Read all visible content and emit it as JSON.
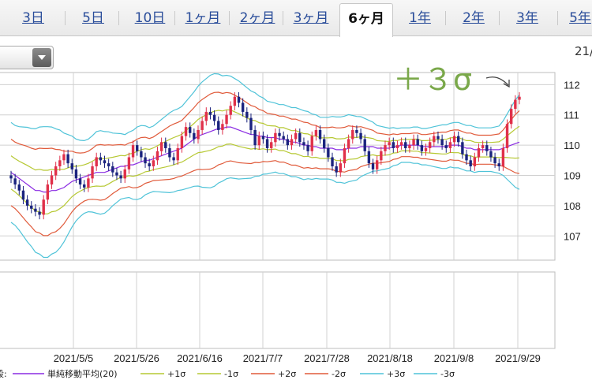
{
  "tabs": [
    {
      "label": "3日",
      "active": false
    },
    {
      "label": "5日",
      "active": false
    },
    {
      "label": "10日",
      "active": false
    },
    {
      "label": "1ヶ月",
      "active": false
    },
    {
      "label": "2ヶ月",
      "active": false
    },
    {
      "label": "3ヶ月",
      "active": false
    },
    {
      "label": "6ヶ月",
      "active": true
    },
    {
      "label": "1年",
      "active": false
    },
    {
      "label": "2年",
      "active": false
    },
    {
      "label": "3年",
      "active": false
    },
    {
      "label": "5年",
      "active": false
    }
  ],
  "dropdown_icon": "chevron-down-icon",
  "corner_label": "21/",
  "annotation": "＋３σ",
  "chart_data": {
    "type": "candlestick",
    "ylim": [
      106.2,
      112.4
    ],
    "yticks": [
      107,
      108,
      109,
      110,
      111,
      112
    ],
    "xtick_labels": [
      "2021/5/5",
      "2021/5/26",
      "2021/6/16",
      "2021/7/7",
      "2021/7/28",
      "2021/8/18",
      "2021/9/8",
      "2021/9/29"
    ],
    "grid": true,
    "legend": {
      "prefix": "段:",
      "items": [
        {
          "label": "単純移動平均(20)",
          "color": "#8a2be2"
        },
        {
          "label": "+1σ",
          "color": "#b6c832"
        },
        {
          "label": "-1σ",
          "color": "#b6c832"
        },
        {
          "label": "+2σ",
          "color": "#e05a3a"
        },
        {
          "label": "-2σ",
          "color": "#e05a3a"
        },
        {
          "label": "+3σ",
          "color": "#4fc3d8"
        },
        {
          "label": "-3σ",
          "color": "#4fc3d8"
        }
      ]
    },
    "up_color": "#e0304a",
    "down_color": "#1a237e",
    "close": [
      108.9,
      108.7,
      108.5,
      108.2,
      108.0,
      107.9,
      107.8,
      107.7,
      108.2,
      108.7,
      109.0,
      109.3,
      109.5,
      109.7,
      109.4,
      109.2,
      108.9,
      108.7,
      108.6,
      108.9,
      109.3,
      109.6,
      109.5,
      109.4,
      109.3,
      109.1,
      109.0,
      108.9,
      109.2,
      109.6,
      110.0,
      109.8,
      109.6,
      109.4,
      109.3,
      109.5,
      109.8,
      110.1,
      109.9,
      109.6,
      109.5,
      109.9,
      110.3,
      110.6,
      110.4,
      110.2,
      110.5,
      110.8,
      111.1,
      111.0,
      110.8,
      110.5,
      110.7,
      111.0,
      111.3,
      111.6,
      111.4,
      111.1,
      110.9,
      110.5,
      110.0,
      110.3,
      110.2,
      109.9,
      110.1,
      110.4,
      110.3,
      110.2,
      110.0,
      110.2,
      110.4,
      110.1,
      110.0,
      109.8,
      110.3,
      110.5,
      110.2,
      109.9,
      109.6,
      109.3,
      109.1,
      109.4,
      109.9,
      110.2,
      110.5,
      110.4,
      110.2,
      109.8,
      109.4,
      109.2,
      109.5,
      109.8,
      110.0,
      110.1,
      109.9,
      110.0,
      110.1,
      109.9,
      110.0,
      110.2,
      110.0,
      109.8,
      109.9,
      110.1,
      110.3,
      110.2,
      110.0,
      109.9,
      110.1,
      110.3,
      110.1,
      109.7,
      109.5,
      109.3,
      109.6,
      109.9,
      110.0,
      109.8,
      109.6,
      109.4,
      109.3,
      109.9,
      110.7,
      111.2,
      111.5,
      111.6
    ],
    "sma20": [
      109.1,
      109.0,
      108.9,
      108.8,
      108.7,
      108.6,
      108.5,
      108.5,
      108.45,
      108.45,
      108.5,
      108.5,
      108.55,
      108.6,
      108.7,
      108.8,
      108.85,
      108.9,
      108.95,
      109.0,
      109.05,
      109.1,
      109.1,
      109.1,
      109.15,
      109.2,
      109.25,
      109.3,
      109.3,
      109.35,
      109.35,
      109.4,
      109.45,
      109.5,
      109.5,
      109.55,
      109.6,
      109.65,
      109.7,
      109.75,
      109.8,
      109.85,
      109.9,
      110.0,
      110.1,
      110.2,
      110.3,
      110.35,
      110.4,
      110.45,
      110.5,
      110.55,
      110.55,
      110.6,
      110.6,
      110.55,
      110.5,
      110.45,
      110.4,
      110.35,
      110.35,
      110.3,
      110.3,
      110.25,
      110.25,
      110.25,
      110.2,
      110.2,
      110.15,
      110.1,
      110.1,
      110.05,
      110.0,
      110.0,
      109.95,
      109.95,
      109.9,
      109.9,
      109.9,
      109.9,
      109.85,
      109.85,
      109.85,
      109.9,
      109.9,
      109.9,
      109.95,
      109.95,
      109.95,
      109.95,
      109.9,
      109.9,
      109.9,
      109.9,
      109.95,
      109.95,
      110.0,
      110.0,
      110.0,
      110.0,
      110.0,
      109.95,
      109.95,
      109.95,
      109.95,
      109.95,
      109.95,
      109.95,
      110.0,
      110.0,
      110.0,
      109.95,
      109.9,
      109.9,
      109.85,
      109.85,
      109.85,
      109.85,
      109.85,
      109.85,
      109.85,
      109.9,
      109.95,
      110.0,
      110.05,
      110.1
    ],
    "sigma": [
      0.55,
      0.55,
      0.57,
      0.6,
      0.63,
      0.65,
      0.68,
      0.7,
      0.72,
      0.72,
      0.7,
      0.68,
      0.65,
      0.6,
      0.55,
      0.5,
      0.45,
      0.42,
      0.4,
      0.4,
      0.42,
      0.45,
      0.46,
      0.45,
      0.43,
      0.4,
      0.38,
      0.36,
      0.35,
      0.36,
      0.38,
      0.4,
      0.4,
      0.38,
      0.36,
      0.36,
      0.38,
      0.4,
      0.42,
      0.44,
      0.45,
      0.45,
      0.46,
      0.48,
      0.5,
      0.52,
      0.55,
      0.58,
      0.6,
      0.62,
      0.62,
      0.6,
      0.58,
      0.57,
      0.56,
      0.55,
      0.54,
      0.52,
      0.5,
      0.48,
      0.46,
      0.44,
      0.42,
      0.4,
      0.39,
      0.38,
      0.38,
      0.38,
      0.38,
      0.38,
      0.38,
      0.38,
      0.38,
      0.37,
      0.36,
      0.35,
      0.34,
      0.34,
      0.34,
      0.35,
      0.36,
      0.36,
      0.37,
      0.37,
      0.36,
      0.35,
      0.33,
      0.31,
      0.29,
      0.27,
      0.25,
      0.24,
      0.23,
      0.22,
      0.21,
      0.2,
      0.19,
      0.19,
      0.19,
      0.2,
      0.2,
      0.2,
      0.2,
      0.21,
      0.22,
      0.23,
      0.24,
      0.24,
      0.24,
      0.25,
      0.25,
      0.25,
      0.25,
      0.25,
      0.25,
      0.24,
      0.24,
      0.24,
      0.24,
      0.25,
      0.26,
      0.3,
      0.36,
      0.42,
      0.48,
      0.52
    ]
  }
}
